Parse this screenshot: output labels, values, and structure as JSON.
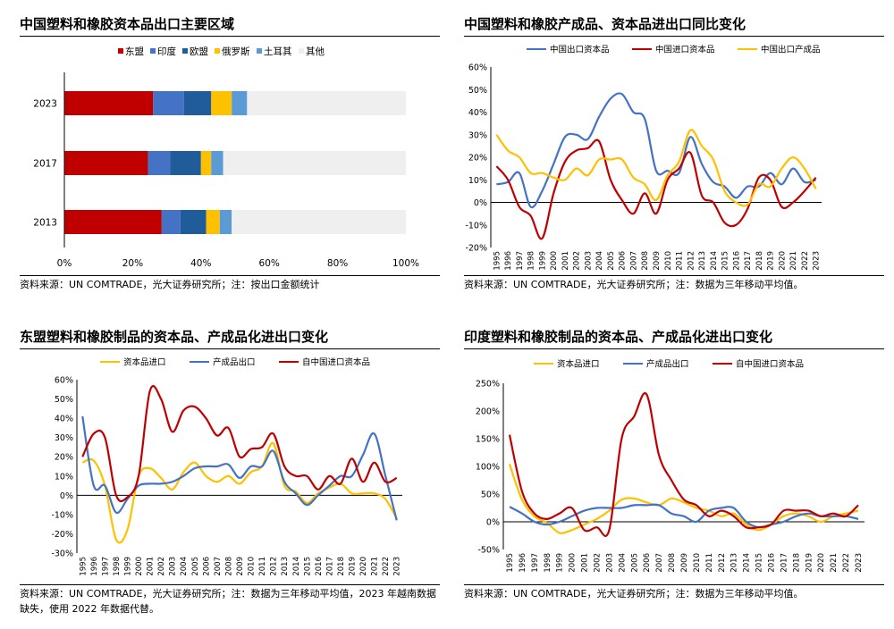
{
  "panels": [
    {
      "title": "中国塑料和橡胶资本品出口主要区域",
      "source": "资料来源：UN COMTRADE，光大证券研究所；注：按出口金额统计",
      "chart_data": {
        "type": "bar",
        "stacked": true,
        "orientation": "horizontal",
        "categories": [
          "2023",
          "2017",
          "2013"
        ],
        "series": [
          {
            "name": "东盟",
            "color": "#C00000",
            "values": [
              26,
              24.5,
              28.5
            ]
          },
          {
            "name": "印度",
            "color": "#4472C4",
            "values": [
              9,
              6.5,
              5.5
            ]
          },
          {
            "name": "欧盟",
            "color": "#1F5C99",
            "values": [
              8,
              9,
              7.5
            ]
          },
          {
            "name": "俄罗斯",
            "color": "#FFC000",
            "values": [
              6,
              3,
              4
            ]
          },
          {
            "name": "土耳其",
            "color": "#5B9BD5",
            "values": [
              4.5,
              3.5,
              3.5
            ]
          },
          {
            "name": "其他",
            "color": "#EFEFEF",
            "values": [
              46.5,
              53.5,
              51
            ]
          }
        ],
        "xlim": [
          0,
          100
        ],
        "xticks": [
          "0%",
          "20%",
          "40%",
          "60%",
          "80%",
          "100%"
        ],
        "legend": "top"
      }
    },
    {
      "title": "中国塑料和橡胶产成品、资本品进出口同比变化",
      "source": "资料来源：UN COMTRADE，光大证券研究所；注：数据为三年移动平均值。",
      "chart_data": {
        "type": "line",
        "x": [
          "1995",
          "1996",
          "1997",
          "1998",
          "1999",
          "2000",
          "2001",
          "2002",
          "2003",
          "2004",
          "2005",
          "2006",
          "2007",
          "2008",
          "2009",
          "2010",
          "2011",
          "2012",
          "2013",
          "2014",
          "2015",
          "2016",
          "2017",
          "2018",
          "2019",
          "2020",
          "2021",
          "2022",
          "2023"
        ],
        "series": [
          {
            "name": "中国出口资本品",
            "color": "#4472C4",
            "values": [
              8,
              9,
              13,
              -2,
              5,
              17,
              29,
              30,
              28,
              38,
              46,
              48,
              40,
              37,
              14,
              14,
              13,
              29,
              17,
              9,
              7,
              2,
              7,
              7,
              13,
              8,
              15,
              9,
              10
            ]
          },
          {
            "name": "中国进口资本品",
            "color": "#C00000",
            "values": [
              16,
              10,
              -2,
              -6,
              -16,
              4,
              18,
              23,
              24,
              27,
              10,
              1,
              -5,
              4,
              -5,
              10,
              15,
              22,
              3,
              0,
              -9,
              -10,
              -3,
              11,
              10,
              -2,
              0,
              5,
              11
            ]
          },
          {
            "name": "中国出口产成品",
            "color": "#FFC000",
            "values": [
              30,
              23,
              20,
              13,
              13,
              11,
              10,
              15,
              12,
              19,
              19,
              19,
              11,
              8,
              1,
              12,
              18,
              32,
              25,
              19,
              5,
              0,
              -1,
              8,
              7,
              15,
              20,
              15,
              6
            ]
          }
        ],
        "ylim": [
          -20,
          60
        ],
        "yticks": [
          "-20%",
          "-10%",
          "0%",
          "10%",
          "20%",
          "30%",
          "40%",
          "50%",
          "60%"
        ],
        "legend": "top"
      }
    },
    {
      "title": "东盟塑料和橡胶制品的资本品、产成品化进出口变化",
      "source": "资料来源：UN COMTRADE，光大证券研究所；注：数据为三年移动平均值，2023 年越南数据缺失，使用 2022 年数据代替。",
      "chart_data": {
        "type": "line",
        "x": [
          "1995",
          "1996",
          "1997",
          "1998",
          "1999",
          "2000",
          "2001",
          "2002",
          "2003",
          "2004",
          "2005",
          "2006",
          "2007",
          "2008",
          "2009",
          "2010",
          "2011",
          "2012",
          "2013",
          "2014",
          "2015",
          "2016",
          "2017",
          "2018",
          "2019",
          "2020",
          "2021",
          "2022",
          "2023"
        ],
        "series": [
          {
            "name": "资本品进口",
            "color": "#FFC000",
            "values": [
              17,
              18,
              5,
              -23,
              -18,
              10,
              14,
              9,
              3,
              12,
              17,
              10,
              7,
              10,
              6,
              12,
              15,
              27,
              5,
              2,
              -4,
              1,
              4,
              6,
              1,
              1,
              1,
              -2,
              -12
            ]
          },
          {
            "name": "产成品出口",
            "color": "#4472C4",
            "values": [
              41,
              5,
              5,
              -9,
              -2,
              5,
              6,
              6,
              7,
              10,
              14,
              15,
              15,
              16,
              9,
              15,
              15,
              23,
              7,
              1,
              -5,
              0,
              5,
              10,
              10,
              21,
              32,
              10,
              -13
            ]
          },
          {
            "name": "自中国进口资本品",
            "color": "#C00000",
            "values": [
              20,
              32,
              30,
              0,
              -1,
              10,
              54,
              50,
              33,
              44,
              46,
              40,
              31,
              35,
              20,
              24,
              25,
              32,
              15,
              10,
              10,
              3,
              10,
              6,
              19,
              7,
              17,
              7,
              9
            ]
          }
        ],
        "ylim": [
          -30,
          60
        ],
        "yticks": [
          "-30%",
          "-20%",
          "-10%",
          "0%",
          "10%",
          "20%",
          "30%",
          "40%",
          "50%",
          "60%"
        ],
        "legend": "top"
      }
    },
    {
      "title": "印度塑料和橡胶制品的资本品、产成品化进出口变化",
      "source": "资料来源：UN COMTRADE，光大证券研究所；注：数据为三年移动平均值。",
      "chart_data": {
        "type": "line",
        "x": [
          "1995",
          "1996",
          "1997",
          "1998",
          "1999",
          "2000",
          "2001",
          "2002",
          "2003",
          "2004",
          "2005",
          "2006",
          "2007",
          "2008",
          "2009",
          "2010",
          "2011",
          "2012",
          "2013",
          "2014",
          "2015",
          "2016",
          "2017",
          "2018",
          "2019",
          "2020",
          "2021",
          "2022",
          "2023"
        ],
        "series": [
          {
            "name": "资本品进口",
            "color": "#FFC000",
            "values": [
              104,
              40,
              10,
              -2,
              -20,
              -15,
              -5,
              5,
              20,
              40,
              42,
              35,
              30,
              42,
              35,
              25,
              20,
              10,
              15,
              -5,
              -15,
              -5,
              10,
              15,
              10,
              0,
              10,
              15,
              20
            ]
          },
          {
            "name": "产成品出口",
            "color": "#4472C4",
            "values": [
              27,
              15,
              0,
              -5,
              0,
              10,
              20,
              25,
              25,
              25,
              30,
              30,
              30,
              15,
              10,
              0,
              20,
              25,
              25,
              0,
              -10,
              -5,
              0,
              10,
              15,
              10,
              10,
              10,
              5
            ]
          },
          {
            "name": "自中国进口资本品",
            "color": "#C00000",
            "values": [
              157,
              55,
              15,
              5,
              15,
              25,
              -15,
              -10,
              -15,
              150,
              190,
              230,
              120,
              75,
              40,
              30,
              10,
              20,
              10,
              -10,
              -10,
              -5,
              20,
              20,
              20,
              10,
              15,
              10,
              30
            ]
          }
        ],
        "ylim": [
          -50,
          250
        ],
        "yticks": [
          "-50%",
          "0%",
          "50%",
          "100%",
          "150%",
          "200%",
          "250%"
        ],
        "legend": "top"
      }
    }
  ]
}
